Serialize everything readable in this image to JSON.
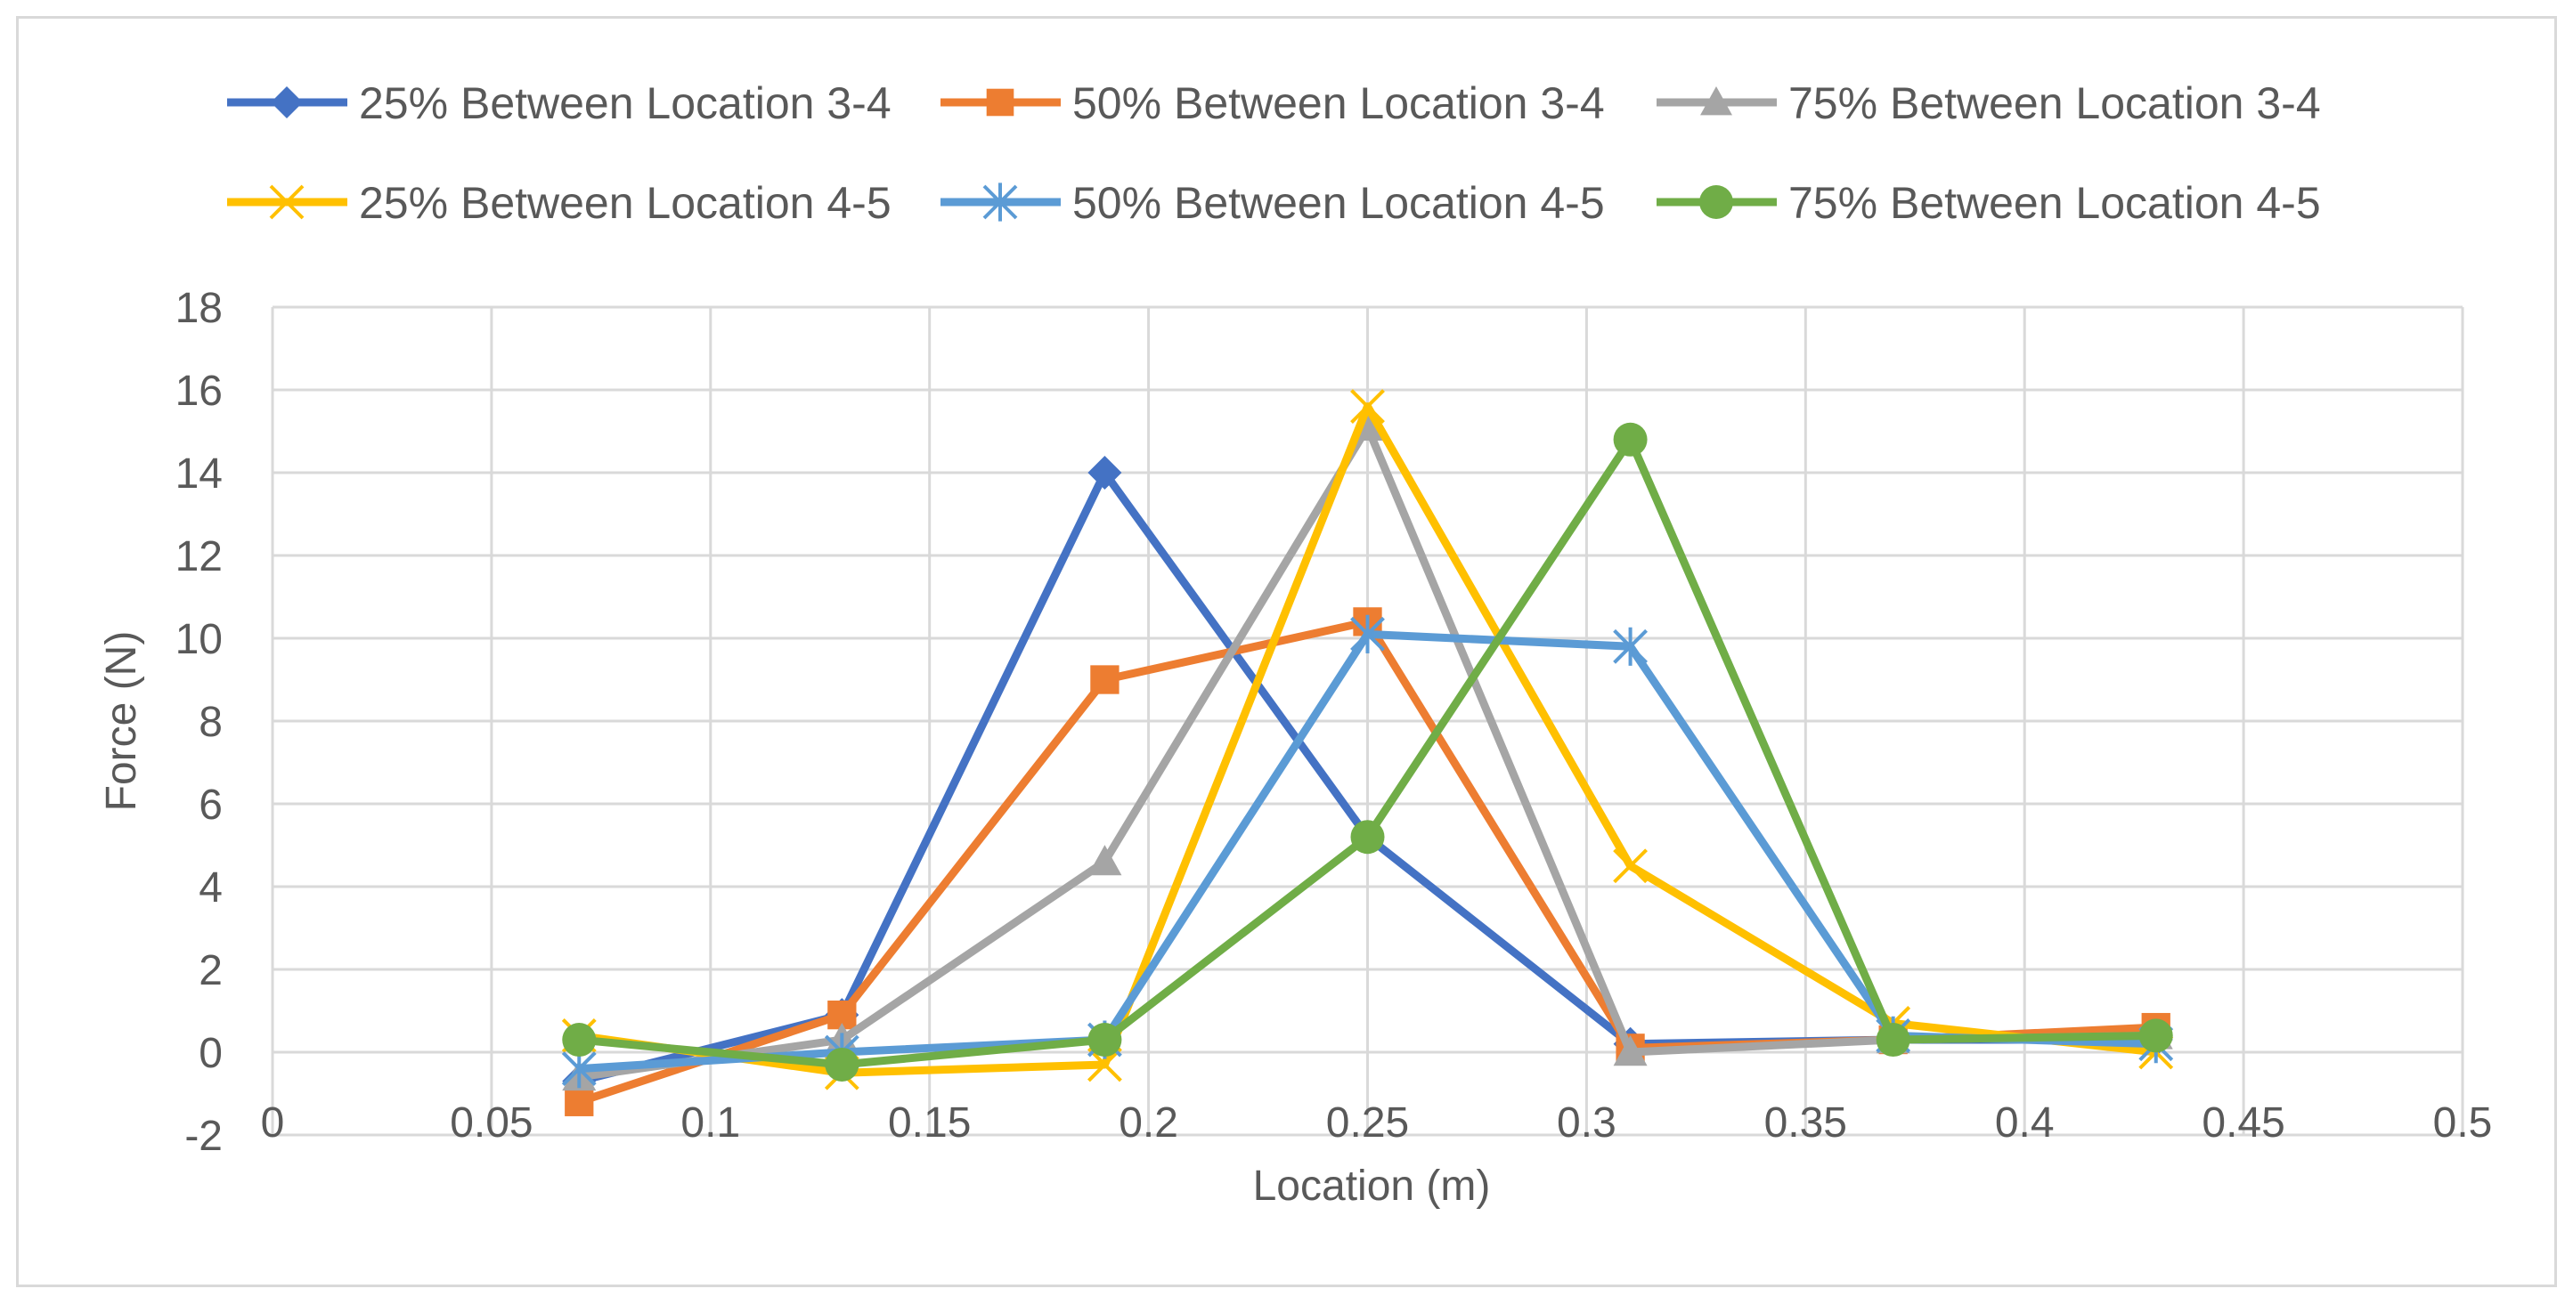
{
  "chart_data": {
    "type": "line",
    "title": "",
    "xlabel": "Location (m)",
    "ylabel": "Force (N)",
    "xlim": [
      0,
      0.5
    ],
    "ylim": [
      -2,
      18
    ],
    "x_ticks": [
      "0",
      "0.05",
      "0.1",
      "0.15",
      "0.2",
      "0.25",
      "0.3",
      "0.35",
      "0.4",
      "0.45",
      "0.5"
    ],
    "x_tick_values": [
      0,
      0.05,
      0.1,
      0.15,
      0.2,
      0.25,
      0.3,
      0.35,
      0.4,
      0.45,
      0.5
    ],
    "y_ticks": [
      "-2",
      "0",
      "2",
      "4",
      "6",
      "8",
      "10",
      "12",
      "14",
      "16",
      "18"
    ],
    "y_tick_values": [
      -2,
      0,
      2,
      4,
      6,
      8,
      10,
      12,
      14,
      16,
      18
    ],
    "grid": true,
    "legend_position": "top",
    "x": [
      0.07,
      0.13,
      0.19,
      0.25,
      0.31,
      0.37,
      0.43
    ],
    "series": [
      {
        "name": "25% Between Location 3-4",
        "color": "#4472C4",
        "marker": "diamond",
        "values": [
          -0.7,
          0.9,
          14.0,
          5.2,
          0.2,
          0.3,
          0.3
        ]
      },
      {
        "name": "50% Between Location 3-4",
        "color": "#ED7D31",
        "marker": "square",
        "values": [
          -1.2,
          0.9,
          9.0,
          10.4,
          0.1,
          0.3,
          0.6
        ]
      },
      {
        "name": "75% Between Location 3-4",
        "color": "#A5A5A5",
        "marker": "triangle",
        "values": [
          -0.6,
          0.3,
          4.6,
          15.1,
          0.0,
          0.3,
          0.4
        ]
      },
      {
        "name": "25% Between Location 4-5",
        "color": "#FFC000",
        "marker": "x",
        "values": [
          0.4,
          -0.5,
          -0.3,
          15.6,
          4.5,
          0.7,
          0.0
        ]
      },
      {
        "name": "50% Between Location 4-5",
        "color": "#5B9BD5",
        "marker": "star",
        "values": [
          -0.4,
          0.0,
          0.3,
          10.1,
          9.8,
          0.4,
          0.2
        ]
      },
      {
        "name": "75% Between Location 4-5",
        "color": "#70AD47",
        "marker": "circle",
        "values": [
          0.3,
          -0.3,
          0.3,
          5.2,
          14.8,
          0.3,
          0.4
        ]
      }
    ]
  },
  "colors": {
    "grid": "#D9D9D9",
    "axis_text": "#595959",
    "frame": "#D9D9D9"
  }
}
